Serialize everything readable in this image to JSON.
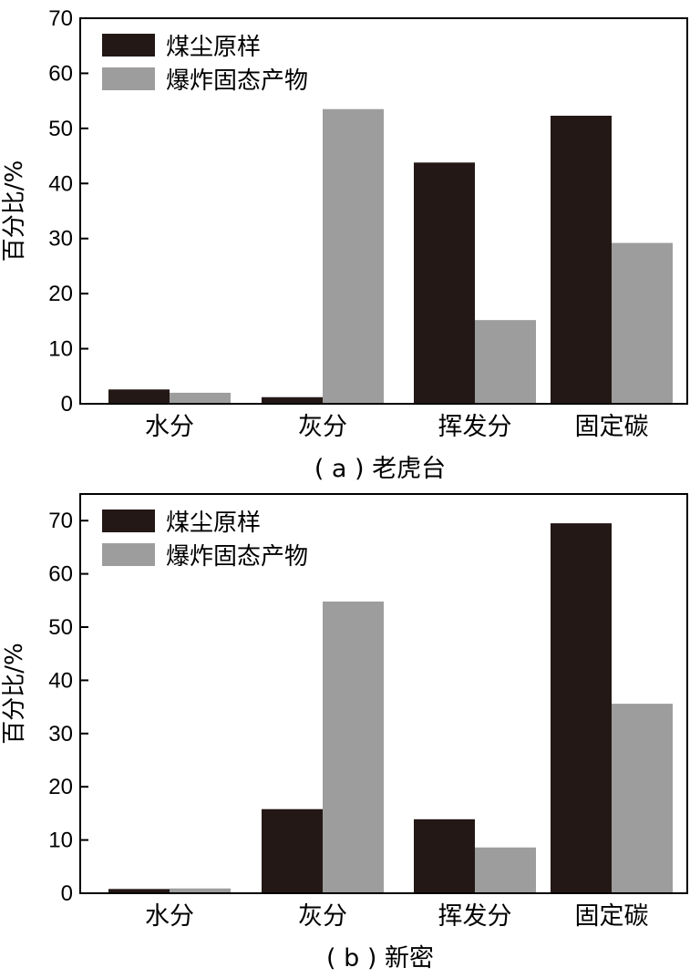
{
  "chart_data": [
    {
      "type": "bar",
      "caption": "( a ) 老虎台",
      "ylabel": "百分比/%",
      "xlabel": "",
      "categories": [
        "水分",
        "灰分",
        "挥发分",
        "固定碳"
      ],
      "yticks": [
        0,
        10,
        20,
        30,
        40,
        50,
        60,
        70
      ],
      "ylim": [
        0,
        70
      ],
      "legend_position": "top-left",
      "series": [
        {
          "name": "煤尘原样",
          "color": "#231815",
          "values": [
            2.6,
            1.2,
            43.8,
            52.3
          ]
        },
        {
          "name": "爆炸固态产物",
          "color": "#9d9d9d",
          "values": [
            2.0,
            53.5,
            15.2,
            29.2
          ]
        }
      ]
    },
    {
      "type": "bar",
      "caption": "( b ) 新密",
      "ylabel": "百分比/%",
      "xlabel": "",
      "categories": [
        "水分",
        "灰分",
        "挥发分",
        "固定碳"
      ],
      "yticks": [
        0,
        10,
        20,
        30,
        40,
        50,
        60,
        70
      ],
      "ylim": [
        0,
        75
      ],
      "legend_position": "top-left",
      "series": [
        {
          "name": "煤尘原样",
          "color": "#231815",
          "values": [
            0.8,
            15.8,
            13.9,
            69.5
          ]
        },
        {
          "name": "爆炸固态产物",
          "color": "#9d9d9d",
          "values": [
            0.9,
            54.8,
            8.6,
            35.6
          ]
        }
      ]
    }
  ]
}
